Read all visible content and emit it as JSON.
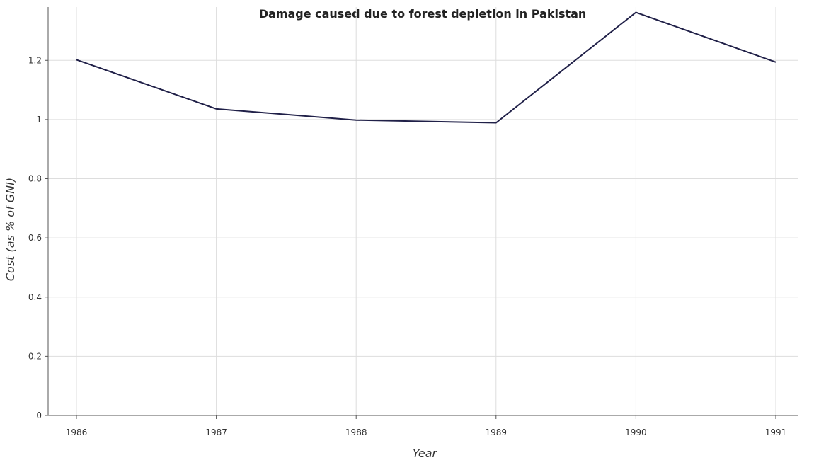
{
  "chart_data": {
    "type": "line",
    "title": "Damage caused due to forest depletion in Pakistan",
    "xlabel": "Year",
    "ylabel": "Cost (as % of GNI)",
    "categories": [
      "1986",
      "1987",
      "1988",
      "1989",
      "1990",
      "1991"
    ],
    "series": [
      {
        "values": [
          1.202,
          1.036,
          0.998,
          0.989,
          1.362,
          1.194
        ]
      }
    ],
    "ylim": [
      0,
      1.38
    ],
    "yticks": [
      "0",
      "0.2",
      "0.4",
      "0.6",
      "0.8",
      "1",
      "1.2"
    ],
    "ytick_values": [
      0,
      0.2,
      0.4,
      0.6,
      0.8,
      1.0,
      1.2
    ],
    "grid": true,
    "line_color": "#202048"
  }
}
